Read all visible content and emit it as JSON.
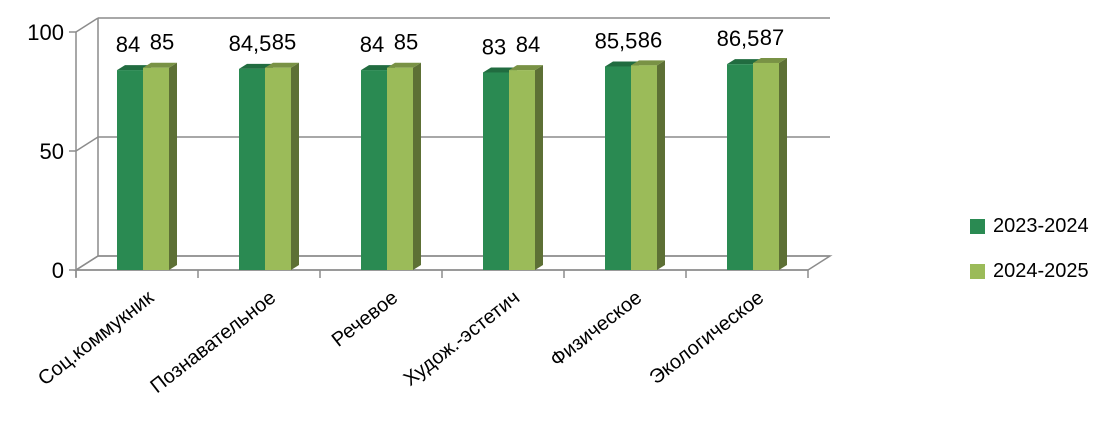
{
  "chart_data": {
    "type": "bar",
    "categories": [
      "Соц.коммукник",
      "Познавательное",
      "Речевое",
      "Худож.-эстетич",
      "Физическое",
      "Экологическое"
    ],
    "series": [
      {
        "name": "2023-2024",
        "values": [
          84,
          84.5,
          84,
          83,
          85.5,
          86.5
        ],
        "labels": [
          "84",
          "84,5",
          "84",
          "83",
          "85,5",
          "86,5"
        ],
        "color": "#2a8a52"
      },
      {
        "name": "2024-2025",
        "values": [
          85,
          85,
          85,
          84,
          86,
          87
        ],
        "labels": [
          "85",
          "85",
          "85",
          "84",
          "86",
          "87"
        ],
        "color": "#9bbb59"
      }
    ],
    "ylim": [
      0,
      100
    ],
    "yticks": [
      0,
      50,
      100
    ],
    "ytick_labels": [
      "0",
      "50",
      "100"
    ],
    "grid": true,
    "legend_position": "right",
    "three_d": true
  }
}
